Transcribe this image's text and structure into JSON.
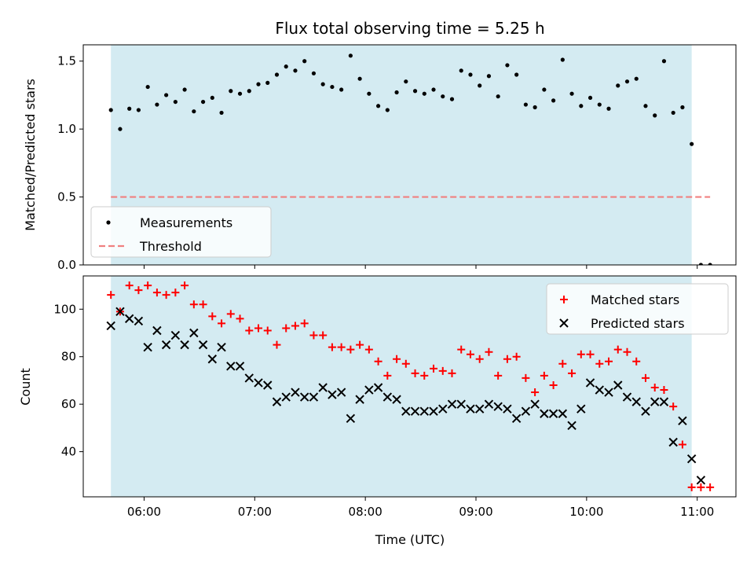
{
  "figure": {
    "title": "Flux total observing time = 5.25 h",
    "xlabel": "Time (UTC)"
  },
  "colors": {
    "shade": "#add8e6",
    "measurement": "#000000",
    "threshold": "#f08080",
    "matched": "#ff0000",
    "predicted": "#000000"
  },
  "chart_data": [
    {
      "type": "scatter",
      "panel": "top",
      "ylabel": "Matched/Predicted stars",
      "xlim": [
        "05:27",
        "11:21"
      ],
      "ylim": [
        0,
        1.62
      ],
      "yticks": [
        0.0,
        0.5,
        1.0,
        1.5
      ],
      "xticks": [
        "06:00",
        "07:00",
        "08:00",
        "09:00",
        "10:00",
        "11:00"
      ],
      "shaded_interval": [
        "05:42",
        "10:57"
      ],
      "legend_position": "lower-left",
      "series": [
        {
          "name": "Measurements",
          "marker": "dot",
          "points": [
            [
              "05:42",
              1.14
            ],
            [
              "05:47",
              1.0
            ],
            [
              "05:52",
              1.15
            ],
            [
              "05:57",
              1.14
            ],
            [
              "06:02",
              1.31
            ],
            [
              "06:07",
              1.18
            ],
            [
              "06:12",
              1.25
            ],
            [
              "06:17",
              1.2
            ],
            [
              "06:22",
              1.29
            ],
            [
              "06:27",
              1.13
            ],
            [
              "06:32",
              1.2
            ],
            [
              "06:37",
              1.23
            ],
            [
              "06:42",
              1.12
            ],
            [
              "06:47",
              1.28
            ],
            [
              "06:52",
              1.26
            ],
            [
              "06:57",
              1.28
            ],
            [
              "07:02",
              1.33
            ],
            [
              "07:07",
              1.34
            ],
            [
              "07:12",
              1.4
            ],
            [
              "07:17",
              1.46
            ],
            [
              "07:22",
              1.43
            ],
            [
              "07:27",
              1.5
            ],
            [
              "07:32",
              1.41
            ],
            [
              "07:37",
              1.33
            ],
            [
              "07:42",
              1.31
            ],
            [
              "07:47",
              1.29
            ],
            [
              "07:52",
              1.54
            ],
            [
              "07:57",
              1.37
            ],
            [
              "08:02",
              1.26
            ],
            [
              "08:07",
              1.17
            ],
            [
              "08:12",
              1.14
            ],
            [
              "08:17",
              1.27
            ],
            [
              "08:22",
              1.35
            ],
            [
              "08:27",
              1.28
            ],
            [
              "08:32",
              1.26
            ],
            [
              "08:37",
              1.29
            ],
            [
              "08:42",
              1.24
            ],
            [
              "08:47",
              1.22
            ],
            [
              "08:52",
              1.43
            ],
            [
              "08:57",
              1.4
            ],
            [
              "09:02",
              1.32
            ],
            [
              "09:07",
              1.39
            ],
            [
              "09:12",
              1.24
            ],
            [
              "09:17",
              1.47
            ],
            [
              "09:22",
              1.4
            ],
            [
              "09:27",
              1.18
            ],
            [
              "09:32",
              1.16
            ],
            [
              "09:37",
              1.29
            ],
            [
              "09:42",
              1.21
            ],
            [
              "09:47",
              1.51
            ],
            [
              "09:52",
              1.26
            ],
            [
              "09:57",
              1.17
            ],
            [
              "10:02",
              1.23
            ],
            [
              "10:07",
              1.18
            ],
            [
              "10:12",
              1.15
            ],
            [
              "10:17",
              1.32
            ],
            [
              "10:22",
              1.35
            ],
            [
              "10:27",
              1.37
            ],
            [
              "10:32",
              1.17
            ],
            [
              "10:37",
              1.1
            ],
            [
              "10:42",
              1.5
            ],
            [
              "10:47",
              1.12
            ],
            [
              "10:52",
              1.16
            ],
            [
              "10:57",
              0.89
            ],
            [
              "11:02",
              0.0
            ],
            [
              "11:07",
              0.0
            ]
          ]
        },
        {
          "name": "Threshold",
          "style": "dashed-line",
          "points": [
            [
              "05:42",
              0.5
            ],
            [
              "11:07",
              0.5
            ]
          ]
        }
      ]
    },
    {
      "type": "scatter",
      "panel": "bottom",
      "ylabel": "Count",
      "xlim": [
        "05:27",
        "11:21"
      ],
      "ylim": [
        21,
        114
      ],
      "yticks": [
        40,
        60,
        80,
        100
      ],
      "xticks": [
        "06:00",
        "07:00",
        "08:00",
        "09:00",
        "10:00",
        "11:00"
      ],
      "shaded_interval": [
        "05:42",
        "10:57"
      ],
      "legend_position": "upper-right",
      "series": [
        {
          "name": "Matched stars",
          "marker": "plus",
          "points": [
            [
              "05:42",
              106
            ],
            [
              "05:47",
              99
            ],
            [
              "05:52",
              110
            ],
            [
              "05:57",
              108
            ],
            [
              "06:02",
              110
            ],
            [
              "06:07",
              107
            ],
            [
              "06:12",
              106
            ],
            [
              "06:17",
              107
            ],
            [
              "06:22",
              110
            ],
            [
              "06:27",
              102
            ],
            [
              "06:32",
              102
            ],
            [
              "06:37",
              97
            ],
            [
              "06:42",
              94
            ],
            [
              "06:47",
              98
            ],
            [
              "06:52",
              96
            ],
            [
              "06:57",
              91
            ],
            [
              "07:02",
              92
            ],
            [
              "07:07",
              91
            ],
            [
              "07:12",
              85
            ],
            [
              "07:17",
              92
            ],
            [
              "07:22",
              93
            ],
            [
              "07:27",
              94
            ],
            [
              "07:32",
              89
            ],
            [
              "07:37",
              89
            ],
            [
              "07:42",
              84
            ],
            [
              "07:47",
              84
            ],
            [
              "07:52",
              83
            ],
            [
              "07:57",
              85
            ],
            [
              "08:02",
              83
            ],
            [
              "08:07",
              78
            ],
            [
              "08:12",
              72
            ],
            [
              "08:17",
              79
            ],
            [
              "08:22",
              77
            ],
            [
              "08:27",
              73
            ],
            [
              "08:32",
              72
            ],
            [
              "08:37",
              75
            ],
            [
              "08:42",
              74
            ],
            [
              "08:47",
              73
            ],
            [
              "08:52",
              83
            ],
            [
              "08:57",
              81
            ],
            [
              "09:02",
              79
            ],
            [
              "09:07",
              82
            ],
            [
              "09:12",
              72
            ],
            [
              "09:17",
              79
            ],
            [
              "09:22",
              80
            ],
            [
              "09:27",
              71
            ],
            [
              "09:32",
              65
            ],
            [
              "09:37",
              72
            ],
            [
              "09:42",
              68
            ],
            [
              "09:47",
              77
            ],
            [
              "09:52",
              73
            ],
            [
              "09:57",
              81
            ],
            [
              "10:02",
              81
            ],
            [
              "10:07",
              77
            ],
            [
              "10:12",
              78
            ],
            [
              "10:17",
              83
            ],
            [
              "10:22",
              82
            ],
            [
              "10:27",
              78
            ],
            [
              "10:32",
              71
            ],
            [
              "10:37",
              67
            ],
            [
              "10:42",
              66
            ],
            [
              "10:47",
              59
            ],
            [
              "10:52",
              43
            ],
            [
              "10:57",
              25
            ],
            [
              "11:02",
              25
            ],
            [
              "11:07",
              25
            ]
          ]
        },
        {
          "name": "Predicted stars",
          "marker": "x",
          "points": [
            [
              "05:42",
              93
            ],
            [
              "05:47",
              99
            ],
            [
              "05:52",
              96
            ],
            [
              "05:57",
              95
            ],
            [
              "06:02",
              84
            ],
            [
              "06:07",
              91
            ],
            [
              "06:12",
              85
            ],
            [
              "06:17",
              89
            ],
            [
              "06:22",
              85
            ],
            [
              "06:27",
              90
            ],
            [
              "06:32",
              85
            ],
            [
              "06:37",
              79
            ],
            [
              "06:42",
              84
            ],
            [
              "06:47",
              76
            ],
            [
              "06:52",
              76
            ],
            [
              "06:57",
              71
            ],
            [
              "07:02",
              69
            ],
            [
              "07:07",
              68
            ],
            [
              "07:12",
              61
            ],
            [
              "07:17",
              63
            ],
            [
              "07:22",
              65
            ],
            [
              "07:27",
              63
            ],
            [
              "07:32",
              63
            ],
            [
              "07:37",
              67
            ],
            [
              "07:42",
              64
            ],
            [
              "07:47",
              65
            ],
            [
              "07:52",
              54
            ],
            [
              "07:57",
              62
            ],
            [
              "08:02",
              66
            ],
            [
              "08:07",
              67
            ],
            [
              "08:12",
              63
            ],
            [
              "08:17",
              62
            ],
            [
              "08:22",
              57
            ],
            [
              "08:27",
              57
            ],
            [
              "08:32",
              57
            ],
            [
              "08:37",
              57
            ],
            [
              "08:42",
              58
            ],
            [
              "08:47",
              60
            ],
            [
              "08:52",
              60
            ],
            [
              "08:57",
              58
            ],
            [
              "09:02",
              58
            ],
            [
              "09:07",
              60
            ],
            [
              "09:12",
              59
            ],
            [
              "09:17",
              58
            ],
            [
              "09:22",
              54
            ],
            [
              "09:27",
              57
            ],
            [
              "09:32",
              60
            ],
            [
              "09:37",
              56
            ],
            [
              "09:42",
              56
            ],
            [
              "09:47",
              56
            ],
            [
              "09:52",
              51
            ],
            [
              "09:57",
              58
            ],
            [
              "10:02",
              69
            ],
            [
              "10:07",
              66
            ],
            [
              "10:12",
              65
            ],
            [
              "10:17",
              68
            ],
            [
              "10:22",
              63
            ],
            [
              "10:27",
              61
            ],
            [
              "10:32",
              57
            ],
            [
              "10:37",
              61
            ],
            [
              "10:42",
              61
            ],
            [
              "10:47",
              44
            ],
            [
              "10:52",
              53
            ],
            [
              "10:57",
              37
            ],
            [
              "11:02",
              28
            ]
          ]
        }
      ]
    }
  ]
}
